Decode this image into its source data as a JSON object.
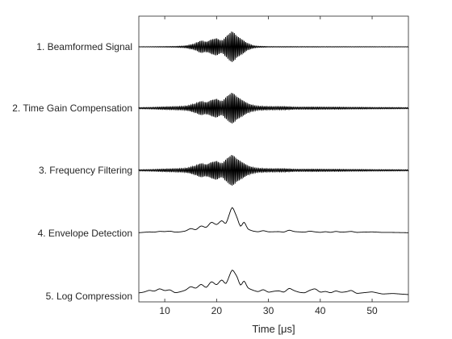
{
  "chart_data": {
    "type": "line",
    "title": "",
    "xlabel": "Time [μs]",
    "ylabel": "",
    "xlim": [
      5,
      57
    ],
    "xticks": [
      "10",
      "20",
      "30",
      "40",
      "50"
    ],
    "xtick_values": [
      10,
      20,
      30,
      40,
      50
    ],
    "grid": false,
    "legend": "none",
    "line_color": "#000000",
    "series": [
      {
        "name": "1. Beamformed Signal",
        "kind": "rf",
        "envelope": [
          [
            5,
            0.01
          ],
          [
            10,
            0.02
          ],
          [
            12,
            0.03
          ],
          [
            14,
            0.06
          ],
          [
            15,
            0.12
          ],
          [
            16,
            0.22
          ],
          [
            17,
            0.4
          ],
          [
            18,
            0.3
          ],
          [
            19,
            0.45
          ],
          [
            20,
            0.55
          ],
          [
            21,
            0.35
          ],
          [
            22,
            0.7
          ],
          [
            23,
            1.0
          ],
          [
            24,
            0.65
          ],
          [
            25,
            0.45
          ],
          [
            26,
            0.2
          ],
          [
            27,
            0.08
          ],
          [
            28,
            0.04
          ],
          [
            30,
            0.02
          ],
          [
            57,
            0.01
          ]
        ]
      },
      {
        "name": "2. Time Gain Compensation",
        "kind": "rf",
        "envelope": [
          [
            5,
            0.04
          ],
          [
            8,
            0.06
          ],
          [
            10,
            0.08
          ],
          [
            12,
            0.1
          ],
          [
            14,
            0.12
          ],
          [
            15,
            0.2
          ],
          [
            16,
            0.3
          ],
          [
            17,
            0.45
          ],
          [
            18,
            0.35
          ],
          [
            19,
            0.5
          ],
          [
            20,
            0.6
          ],
          [
            21,
            0.4
          ],
          [
            22,
            0.75
          ],
          [
            23,
            1.0
          ],
          [
            24,
            0.7
          ],
          [
            25,
            0.5
          ],
          [
            26,
            0.3
          ],
          [
            27,
            0.18
          ],
          [
            28,
            0.12
          ],
          [
            30,
            0.1
          ],
          [
            33,
            0.1
          ],
          [
            35,
            0.07
          ],
          [
            40,
            0.07
          ],
          [
            45,
            0.06
          ],
          [
            50,
            0.05
          ],
          [
            57,
            0.04
          ]
        ]
      },
      {
        "name": "3. Frequency Filtering",
        "kind": "rf",
        "envelope": [
          [
            5,
            0.04
          ],
          [
            8,
            0.06
          ],
          [
            10,
            0.08
          ],
          [
            12,
            0.1
          ],
          [
            14,
            0.12
          ],
          [
            15,
            0.2
          ],
          [
            16,
            0.3
          ],
          [
            17,
            0.45
          ],
          [
            18,
            0.35
          ],
          [
            19,
            0.5
          ],
          [
            20,
            0.6
          ],
          [
            21,
            0.4
          ],
          [
            22,
            0.75
          ],
          [
            23,
            1.0
          ],
          [
            24,
            0.7
          ],
          [
            25,
            0.5
          ],
          [
            26,
            0.3
          ],
          [
            27,
            0.18
          ],
          [
            28,
            0.12
          ],
          [
            30,
            0.1
          ],
          [
            33,
            0.1
          ],
          [
            35,
            0.07
          ],
          [
            40,
            0.07
          ],
          [
            45,
            0.06
          ],
          [
            50,
            0.05
          ],
          [
            57,
            0.04
          ]
        ]
      },
      {
        "name": "4. Envelope Detection",
        "kind": "envelope",
        "envelope": [
          [
            5,
            0.02
          ],
          [
            7,
            0.05
          ],
          [
            8,
            0.04
          ],
          [
            9,
            0.07
          ],
          [
            10,
            0.06
          ],
          [
            11,
            0.08
          ],
          [
            12,
            0.04
          ],
          [
            13,
            0.05
          ],
          [
            14,
            0.08
          ],
          [
            15,
            0.18
          ],
          [
            16,
            0.12
          ],
          [
            17,
            0.28
          ],
          [
            18,
            0.2
          ],
          [
            19,
            0.42
          ],
          [
            20,
            0.3
          ],
          [
            21,
            0.48
          ],
          [
            21.8,
            0.32
          ],
          [
            23,
            1.0
          ],
          [
            24,
            0.55
          ],
          [
            24.6,
            0.2
          ],
          [
            25.3,
            0.45
          ],
          [
            26,
            0.15
          ],
          [
            27,
            0.08
          ],
          [
            28,
            0.05
          ],
          [
            29,
            0.1
          ],
          [
            30,
            0.05
          ],
          [
            32,
            0.06
          ],
          [
            33,
            0.04
          ],
          [
            34,
            0.12
          ],
          [
            35,
            0.06
          ],
          [
            36,
            0.05
          ],
          [
            37,
            0.04
          ],
          [
            38,
            0.08
          ],
          [
            39,
            0.05
          ],
          [
            40,
            0.03
          ],
          [
            41,
            0.06
          ],
          [
            42,
            0.03
          ],
          [
            43,
            0.07
          ],
          [
            44,
            0.04
          ],
          [
            45,
            0.05
          ],
          [
            46,
            0.07
          ],
          [
            47,
            0.03
          ],
          [
            48,
            0.04
          ],
          [
            50,
            0.05
          ],
          [
            52,
            0.03
          ],
          [
            54,
            0.03
          ],
          [
            57,
            0.02
          ]
        ]
      },
      {
        "name": "5. Log Compression",
        "kind": "envelope",
        "envelope": [
          [
            5,
            0.12
          ],
          [
            6,
            0.15
          ],
          [
            7,
            0.22
          ],
          [
            8,
            0.18
          ],
          [
            9,
            0.28
          ],
          [
            10,
            0.2
          ],
          [
            11,
            0.24
          ],
          [
            12,
            0.12
          ],
          [
            13,
            0.16
          ],
          [
            14,
            0.22
          ],
          [
            15,
            0.36
          ],
          [
            16,
            0.28
          ],
          [
            17,
            0.45
          ],
          [
            18,
            0.3
          ],
          [
            19,
            0.55
          ],
          [
            20,
            0.4
          ],
          [
            21,
            0.62
          ],
          [
            21.8,
            0.42
          ],
          [
            23,
            1.0
          ],
          [
            24,
            0.7
          ],
          [
            24.6,
            0.35
          ],
          [
            25.3,
            0.6
          ],
          [
            26,
            0.3
          ],
          [
            27,
            0.22
          ],
          [
            28,
            0.16
          ],
          [
            29,
            0.25
          ],
          [
            30,
            0.14
          ],
          [
            31,
            0.18
          ],
          [
            32,
            0.2
          ],
          [
            33,
            0.14
          ],
          [
            34,
            0.3
          ],
          [
            35,
            0.2
          ],
          [
            36,
            0.14
          ],
          [
            37,
            0.12
          ],
          [
            38,
            0.22
          ],
          [
            39,
            0.28
          ],
          [
            40,
            0.14
          ],
          [
            41,
            0.18
          ],
          [
            42,
            0.12
          ],
          [
            43,
            0.2
          ],
          [
            44,
            0.14
          ],
          [
            45,
            0.16
          ],
          [
            46,
            0.22
          ],
          [
            47,
            0.1
          ],
          [
            48,
            0.12
          ],
          [
            50,
            0.16
          ],
          [
            52,
            0.08
          ],
          [
            54,
            0.1
          ],
          [
            57,
            0.06
          ]
        ]
      }
    ]
  }
}
